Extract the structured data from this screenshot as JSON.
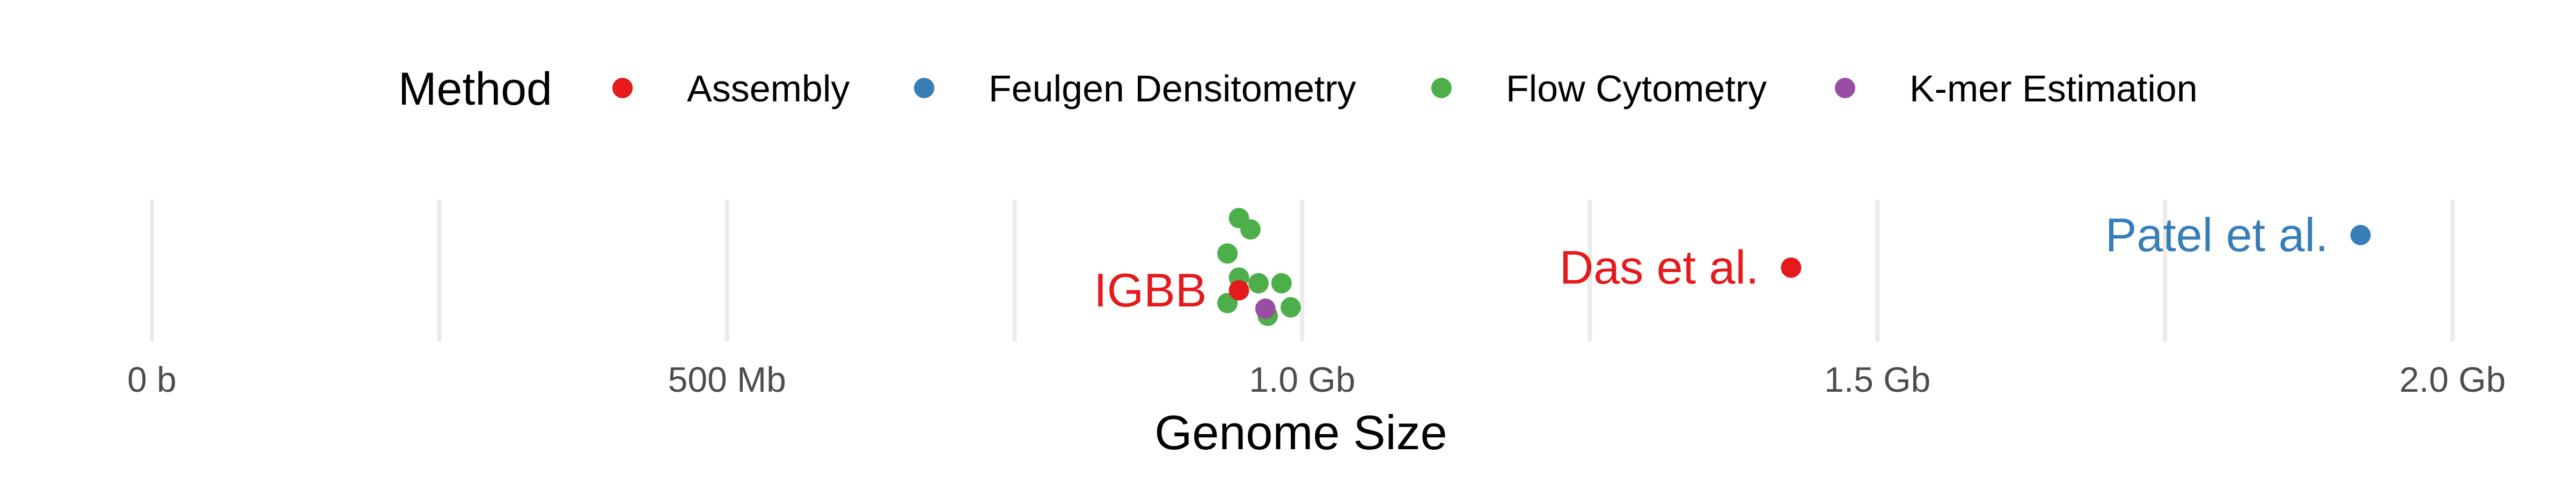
{
  "chart_data": {
    "type": "scatter",
    "xlabel": "Genome Size",
    "x_unit": "Gb",
    "xlim": [
      -0.05,
      2.05
    ],
    "x_ticks": [
      {
        "value": 0.0,
        "label": "0 b"
      },
      {
        "value": 0.5,
        "label": "500 Mb"
      },
      {
        "value": 1.0,
        "label": "1.0 Gb"
      },
      {
        "value": 1.5,
        "label": "1.5 Gb"
      },
      {
        "value": 2.0,
        "label": "2.0 Gb"
      }
    ],
    "minor_grid": [
      0.25,
      0.75,
      1.25,
      1.75
    ],
    "grid": true,
    "legend": {
      "title": "Method",
      "position": "top",
      "entries": [
        {
          "label": "Assembly",
          "color": "#e41a1c"
        },
        {
          "label": "Feulgen Densitometry",
          "color": "#377eb8"
        },
        {
          "label": "Flow Cytometry",
          "color": "#4daf4a"
        },
        {
          "label": "K-mer Estimation",
          "color": "#984ea3"
        }
      ]
    },
    "series": [
      {
        "name": "Assembly",
        "color": "#e41a1c",
        "points": [
          {
            "x": 0.945,
            "y": 0.36,
            "label": "IGBB"
          },
          {
            "x": 1.425,
            "y": 0.52,
            "label": "Das et al."
          }
        ]
      },
      {
        "name": "Feulgen Densitometry",
        "color": "#377eb8",
        "points": [
          {
            "x": 1.92,
            "y": 0.75,
            "label": "Patel et al."
          }
        ]
      },
      {
        "name": "Flow Cytometry",
        "color": "#4daf4a",
        "points": [
          {
            "x": 0.945,
            "y": 0.87
          },
          {
            "x": 0.955,
            "y": 0.79
          },
          {
            "x": 0.935,
            "y": 0.62
          },
          {
            "x": 0.945,
            "y": 0.45
          },
          {
            "x": 0.962,
            "y": 0.41
          },
          {
            "x": 0.982,
            "y": 0.41
          },
          {
            "x": 0.935,
            "y": 0.27
          },
          {
            "x": 0.97,
            "y": 0.18
          },
          {
            "x": 0.99,
            "y": 0.24
          }
        ]
      },
      {
        "name": "K-mer Estimation",
        "color": "#984ea3",
        "points": [
          {
            "x": 0.968,
            "y": 0.23
          }
        ]
      }
    ]
  }
}
